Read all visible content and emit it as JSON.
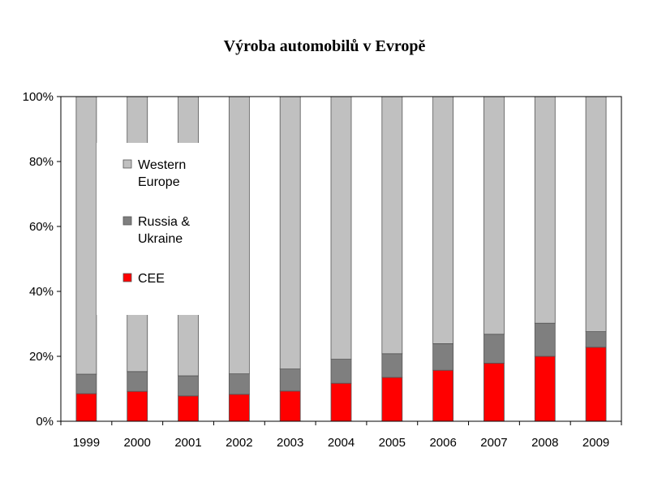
{
  "chart_data": {
    "type": "bar",
    "stacked": true,
    "normalized_percent": true,
    "title": "Výroba automobilů v Evropě",
    "categories": [
      "1999",
      "2000",
      "2001",
      "2002",
      "2003",
      "2004",
      "2005",
      "2006",
      "2007",
      "2008",
      "2009"
    ],
    "series": [
      {
        "name": "CEE",
        "color": "#ff0000",
        "values": [
          8.5,
          9.2,
          7.8,
          8.3,
          9.3,
          11.7,
          13.5,
          15.7,
          17.9,
          20.0,
          22.8
        ]
      },
      {
        "name": "Russia & Ukraine",
        "color": "#7f7f7f",
        "values": [
          6.0,
          6.1,
          6.2,
          6.3,
          6.8,
          7.4,
          7.3,
          8.2,
          8.9,
          10.2,
          4.8
        ]
      },
      {
        "name": "Western Europe",
        "color": "#c0c0c0",
        "values": [
          85.5,
          84.7,
          86.0,
          85.4,
          83.9,
          80.9,
          79.2,
          76.1,
          73.2,
          69.8,
          72.4
        ]
      }
    ],
    "legend": {
      "position": "inside-left",
      "entries": [
        {
          "lines": [
            "Western",
            "Europe"
          ],
          "color": "#c0c0c0"
        },
        {
          "lines": [
            "Russia &",
            "Ukraine"
          ],
          "color": "#7f7f7f"
        },
        {
          "lines": [
            "CEE"
          ],
          "color": "#ff0000"
        }
      ]
    },
    "y_ticks": [
      "0%",
      "20%",
      "40%",
      "60%",
      "80%",
      "100%"
    ],
    "ylim": [
      0,
      100
    ],
    "grid": false
  }
}
